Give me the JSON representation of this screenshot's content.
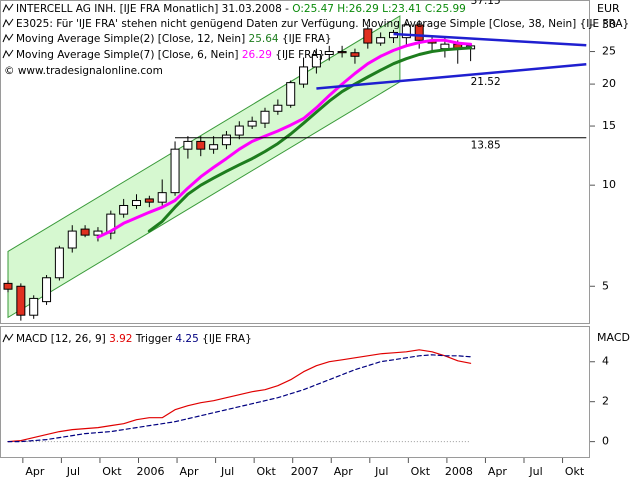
{
  "chart_data": [
    {
      "type": "candlestick",
      "title": "INTERCELL AG INH. [IJE FRA  Monatlich] 31.03.2008 -",
      "quote": "O:25.47 H:26.29 L:23.41 C:25.99",
      "notice": "E3025: Für 'IJE FRA' stehen nicht genügend Daten zur Verfügung. Moving Average Simple [Close, 38, Nein] {IJE FRA}",
      "instrument_tag": "{IJE FRA}",
      "copyright": "© www.tradesignalonline.com",
      "ylabel": "EUR",
      "log_scale": true,
      "ylim": [
        3.86,
        35.6
      ],
      "yticks": [
        5,
        10,
        15,
        20,
        25,
        30
      ],
      "categories": [
        null,
        "Apr",
        null,
        null,
        "Jul",
        null,
        null,
        "Okt",
        null,
        null,
        "2006",
        null,
        null,
        "Apr",
        null,
        null,
        "Jul",
        null,
        null,
        "Okt",
        null,
        null,
        "2007",
        null,
        null,
        "Apr",
        null,
        null,
        "Jul",
        null,
        null,
        "Okt",
        null,
        null,
        "2008",
        null,
        null,
        "Apr",
        null,
        null,
        "Jul",
        null,
        null,
        "Okt",
        null,
        null
      ],
      "open": [
        5.1,
        5.0,
        4.1,
        4.5,
        5.3,
        6.5,
        7.4,
        7.1,
        7.2,
        8.2,
        8.7,
        9.1,
        8.9,
        9.5,
        12.8,
        13.5,
        12.8,
        13.2,
        14.1,
        15.0,
        15.3,
        16.6,
        17.3,
        20.0,
        22.5,
        24.5,
        25.0,
        24.8,
        29.2,
        26.5,
        27.5,
        27.5,
        30.0,
        27.0,
        25.5,
        26.3,
        25.47,
        null,
        null,
        null,
        null,
        null,
        null,
        null,
        null,
        null
      ],
      "high": [
        5.2,
        5.1,
        4.7,
        5.4,
        6.6,
        7.6,
        7.6,
        7.5,
        8.4,
        9.1,
        9.4,
        9.3,
        10.4,
        13.5,
        14.0,
        14.0,
        14.0,
        14.5,
        15.5,
        16.0,
        17.0,
        18.0,
        20.5,
        24.0,
        25.5,
        26.0,
        26.0,
        25.5,
        30.0,
        28.5,
        29.0,
        30.5,
        31.0,
        28.0,
        27.5,
        27.0,
        26.29,
        null,
        null,
        null,
        null,
        null,
        null,
        null,
        null,
        null
      ],
      "low": [
        4.8,
        3.95,
        4.0,
        4.4,
        5.2,
        6.3,
        7.0,
        6.8,
        6.9,
        8.0,
        8.5,
        8.6,
        8.7,
        9.3,
        12.0,
        12.2,
        12.4,
        12.8,
        13.7,
        14.7,
        14.8,
        16.2,
        17.0,
        19.5,
        21.5,
        23.5,
        24.0,
        23.0,
        25.5,
        26.0,
        26.5,
        26.0,
        25.5,
        25.0,
        24.0,
        23.0,
        23.41,
        null,
        null,
        null,
        null,
        null,
        null,
        null,
        null,
        null
      ],
      "close": [
        4.9,
        4.1,
        4.6,
        5.3,
        6.5,
        7.3,
        7.1,
        7.3,
        8.2,
        8.7,
        9.0,
        8.9,
        9.5,
        12.8,
        13.5,
        12.8,
        13.2,
        14.1,
        15.0,
        15.5,
        16.6,
        17.3,
        20.2,
        22.5,
        24.5,
        25.0,
        24.8,
        24.2,
        26.5,
        27.5,
        28.5,
        30.0,
        27.0,
        26.5,
        26.3,
        25.5,
        25.99,
        null,
        null,
        null,
        null,
        null,
        null,
        null,
        null,
        null
      ],
      "up_color": "#ffffff",
      "down_color": "#e03020",
      "series": [
        {
          "name": "Moving Average Simple(2) [Close, 12, Nein]",
          "color": "#1e7d1e",
          "values": [
            null,
            null,
            null,
            null,
            null,
            null,
            null,
            null,
            null,
            null,
            null,
            7.3,
            7.8,
            8.6,
            9.4,
            10.0,
            10.5,
            11.0,
            11.5,
            12.0,
            12.6,
            13.3,
            14.2,
            15.3,
            16.5,
            17.8,
            19.0,
            20.0,
            21.0,
            22.0,
            23.0,
            23.8,
            24.5,
            25.0,
            25.3,
            25.5,
            25.64,
            null,
            null,
            null,
            null,
            null,
            null,
            null,
            null,
            null
          ]
        },
        {
          "name": "Moving Average Simple(7) [Close, 6, Nein]",
          "color": "#ff00ff",
          "values": [
            null,
            null,
            null,
            null,
            null,
            null,
            null,
            7.0,
            7.3,
            7.7,
            8.0,
            8.3,
            8.6,
            9.0,
            9.8,
            10.6,
            11.3,
            12.0,
            12.8,
            13.5,
            14.0,
            14.5,
            15.1,
            15.8,
            17.0,
            18.5,
            20.0,
            21.5,
            23.0,
            24.2,
            25.2,
            26.0,
            26.6,
            27.0,
            27.0,
            26.5,
            26.29,
            null,
            null,
            null,
            null,
            null,
            null,
            null,
            null,
            null
          ]
        }
      ],
      "channel": {
        "x": [
          0,
          30.5
        ],
        "upper": [
          6.35,
          31.9
        ],
        "lower": [
          4.04,
          20.3
        ],
        "color": "#3a9a3a",
        "label": 37.15
      },
      "lines": [
        {
          "x": [
            30,
            45
          ],
          "y": [
            28.2,
            26.1
          ],
          "color": "#1f1fd0"
        },
        {
          "x": [
            24,
            45
          ],
          "y": [
            19.4,
            22.9
          ],
          "color": "#1f1fd0",
          "label": 21.52
        },
        {
          "x": [
            13,
            45
          ],
          "y": [
            13.85,
            13.85
          ],
          "color": "#000000",
          "label": 13.85
        }
      ]
    },
    {
      "type": "line",
      "ylabel": "MACD",
      "instrument_tag": "{IJE FRA}",
      "ylim": [
        -0.72,
        5.59
      ],
      "yticks": [
        0,
        2,
        4
      ],
      "series": [
        {
          "name": "MACD [12, 26, 9]",
          "color": "#e00000",
          "values": [
            0,
            0.05,
            0.2,
            0.35,
            0.5,
            0.6,
            0.65,
            0.7,
            0.8,
            0.9,
            1.1,
            1.2,
            1.2,
            1.6,
            1.8,
            1.95,
            2.05,
            2.2,
            2.35,
            2.5,
            2.6,
            2.8,
            3.1,
            3.5,
            3.8,
            4.0,
            4.1,
            4.2,
            4.3,
            4.4,
            4.45,
            4.5,
            4.6,
            4.5,
            4.3,
            4.05,
            3.92,
            null,
            null,
            null,
            null,
            null,
            null,
            null,
            null,
            null
          ]
        },
        {
          "name": "Trigger",
          "color": "#000080",
          "dashed": true,
          "values": [
            0,
            0,
            0.05,
            0.1,
            0.2,
            0.3,
            0.4,
            0.45,
            0.5,
            0.6,
            0.7,
            0.8,
            0.9,
            1.0,
            1.15,
            1.3,
            1.45,
            1.6,
            1.75,
            1.9,
            2.05,
            2.2,
            2.4,
            2.6,
            2.85,
            3.1,
            3.35,
            3.6,
            3.8,
            4.0,
            4.1,
            4.2,
            4.3,
            4.35,
            4.3,
            4.3,
            4.25,
            null,
            null,
            null,
            null,
            null,
            null,
            null,
            null,
            null
          ]
        }
      ]
    }
  ]
}
